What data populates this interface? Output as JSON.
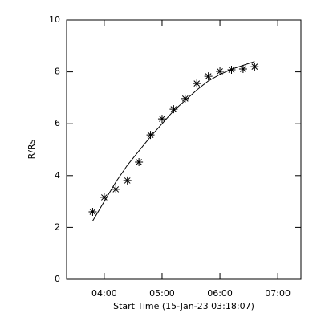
{
  "chart_data": {
    "type": "scatter",
    "xlabel": "Start Time (15-Jan-23 03:18:07)",
    "ylabel": "R/Rs",
    "x": [
      3.8,
      4.0,
      4.2,
      4.4,
      4.6,
      4.8,
      5.0,
      5.2,
      5.4,
      5.6,
      5.8,
      6.0,
      6.2,
      6.4,
      6.6
    ],
    "series": [
      {
        "color": "#000000",
        "marker": "asterisk",
        "values": [
          2.6,
          3.16,
          3.47,
          3.81,
          4.52,
          5.57,
          6.19,
          6.56,
          6.97,
          7.55,
          7.83,
          8.02,
          8.08,
          8.11,
          8.2
        ]
      },
      {
        "color": "#000000",
        "marker": "line",
        "values": [
          2.25,
          3.0,
          3.75,
          4.4,
          4.95,
          5.5,
          6.0,
          6.5,
          6.9,
          7.3,
          7.65,
          7.9,
          8.1,
          8.25,
          8.4
        ]
      }
    ],
    "xlim": [
      3.35,
      7.4
    ],
    "xticks": [
      {
        "value": 4,
        "label": "04:00"
      },
      {
        "value": 5,
        "label": "05:00"
      },
      {
        "value": 6,
        "label": "06:00"
      },
      {
        "value": 7,
        "label": "07:00"
      }
    ],
    "ylim": [
      0,
      10
    ],
    "yticks": [
      0,
      2,
      4,
      6,
      8,
      10
    ]
  }
}
